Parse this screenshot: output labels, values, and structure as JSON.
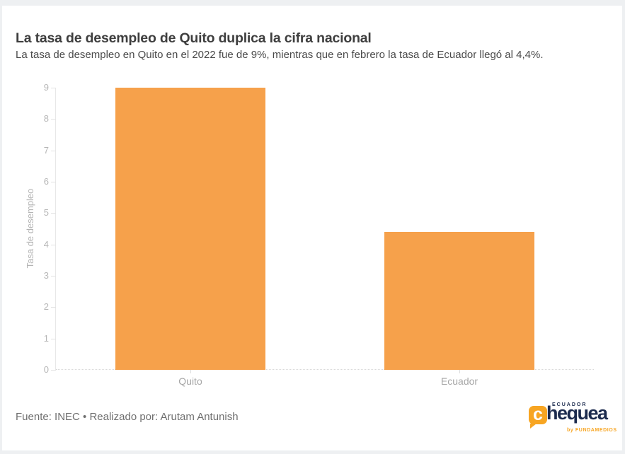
{
  "header": {
    "title": "La tasa de desempleo de Quito duplica la cifra nacional",
    "subtitle": "La tasa de desempleo en Quito en el 2022 fue de 9%, mientras que en febrero la tasa de Ecuador llegó al 4,4%."
  },
  "chart_data": {
    "type": "bar",
    "title": "La tasa de desempleo de Quito duplica la cifra nacional",
    "subtitle": "La tasa de desempleo en Quito en el 2022 fue de 9%, mientras que en febrero la tasa de Ecuador llegó al 4,4%.",
    "categories": [
      "Quito",
      "Ecuador"
    ],
    "values": [
      9,
      4.4
    ],
    "xlabel": "",
    "ylabel": "Tasa de desempleo",
    "ylim": [
      0,
      9
    ],
    "yticks": [
      0,
      1,
      2,
      3,
      4,
      5,
      6,
      7,
      8,
      9
    ],
    "bar_color": "#f6a14b",
    "axis_color": "#e2e2e2",
    "grid": "off",
    "legend": "none"
  },
  "footer": {
    "source": "Fuente: INEC • Realizado por: Arutam Antunish"
  },
  "logo": {
    "top_text": "ECUADOR",
    "bubble_letter": "c",
    "wordmark": "hequea",
    "bottom_text": "by FUNDAMEDIOS",
    "orange": "#f7a522",
    "navy": "#1c2b4e"
  }
}
